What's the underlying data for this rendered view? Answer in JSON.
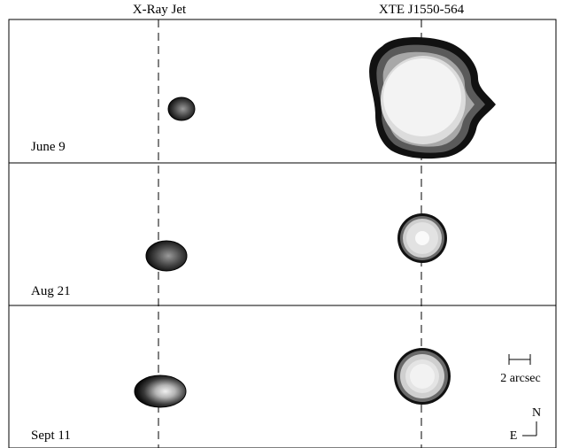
{
  "figure": {
    "columns": {
      "left_label": "X-Ray Jet",
      "right_label": "XTE J1550-564"
    },
    "panels": [
      {
        "label": "June 9"
      },
      {
        "label": "Aug 21"
      },
      {
        "label": "Sept 11"
      }
    ],
    "scale_bar": {
      "label": "2 arcsec"
    },
    "compass": {
      "north": "N",
      "east": "E"
    },
    "colors": {
      "contour_dark": "#111111",
      "contour_mid": "#7a7a7a",
      "contour_light": "#d9d9d9",
      "contour_core": "#f4f4f4"
    }
  }
}
